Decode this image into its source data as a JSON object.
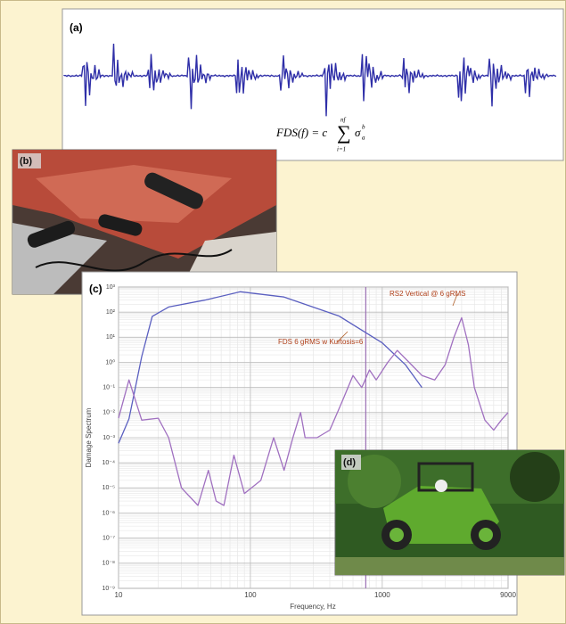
{
  "panels": {
    "a": {
      "label": "(a)",
      "formula": {
        "lhs": "FDS(f) = c",
        "sum": "∑",
        "upper": "nf",
        "lower": "i=1",
        "term": "σ",
        "sup": "b",
        "sub": "a"
      }
    },
    "b": {
      "label": "(b)"
    },
    "d": {
      "label": "(d)"
    }
  },
  "chart_data": {
    "type": "line",
    "panel_label": "(c)",
    "x_label": "Frequency, Hz",
    "y_label": "Damage Spectrum",
    "log_x": true,
    "log_y": true,
    "grid": true,
    "xlim": [
      10,
      9000
    ],
    "xticks": [
      10,
      100,
      1000,
      9000
    ],
    "ylim": [
      1e-09,
      1000
    ],
    "yticks": [
      {
        "value": 1000,
        "label": "10³"
      },
      {
        "value": 100,
        "label": "10²"
      },
      {
        "value": 10,
        "label": "10¹"
      },
      {
        "value": 1,
        "label": "10⁰"
      },
      {
        "value": 0.1,
        "label": "10⁻¹"
      },
      {
        "value": 0.01,
        "label": "10⁻²"
      },
      {
        "value": 0.001,
        "label": "10⁻³"
      },
      {
        "value": 0.0001,
        "label": "10⁻⁴"
      },
      {
        "value": 1e-05,
        "label": "10⁻⁵"
      },
      {
        "value": 1e-06,
        "label": "10⁻⁶"
      },
      {
        "value": 1e-07,
        "label": "10⁻⁷"
      },
      {
        "value": 1e-08,
        "label": "10⁻⁸"
      },
      {
        "value": 1e-09,
        "label": "10⁻⁹"
      }
    ],
    "marker_x": 750,
    "marker_color": "#9b6fb3",
    "series": [
      {
        "name": "FDS 6 gRMS w Kurtosis=6",
        "color": "#5a5fc0",
        "x": [
          10,
          12,
          15,
          18,
          24,
          45,
          84,
          180,
          470,
          1000,
          1500,
          2000
        ],
        "values": [
          0.0006,
          0.0056,
          1.7,
          68,
          160,
          300,
          650,
          400,
          70,
          6,
          0.8,
          0.1
        ]
      },
      {
        "name": "RS2 Vertical @ 6 gRMS",
        "color": "#a070c0",
        "x": [
          10,
          12,
          15,
          20,
          24,
          30,
          40,
          48,
          55,
          63,
          75,
          90,
          120,
          150,
          180,
          210,
          240,
          260,
          320,
          400,
          500,
          600,
          700,
          800,
          900,
          1100,
          1300,
          1600,
          2000,
          2500,
          3000,
          3500,
          4000,
          4500,
          5000,
          6000,
          7000,
          8000,
          9000
        ],
        "values": [
          0.006,
          0.2,
          0.005,
          0.006,
          0.001,
          1e-05,
          2e-06,
          5e-05,
          3e-06,
          2e-06,
          0.0002,
          6e-06,
          2e-05,
          0.001,
          5e-05,
          0.001,
          0.01,
          0.001,
          0.001,
          0.002,
          0.03,
          0.3,
          0.1,
          0.5,
          0.2,
          1,
          3,
          1,
          0.3,
          0.2,
          0.8,
          10,
          60,
          5,
          0.1,
          0.005,
          0.002,
          0.005,
          0.01
        ]
      }
    ]
  }
}
